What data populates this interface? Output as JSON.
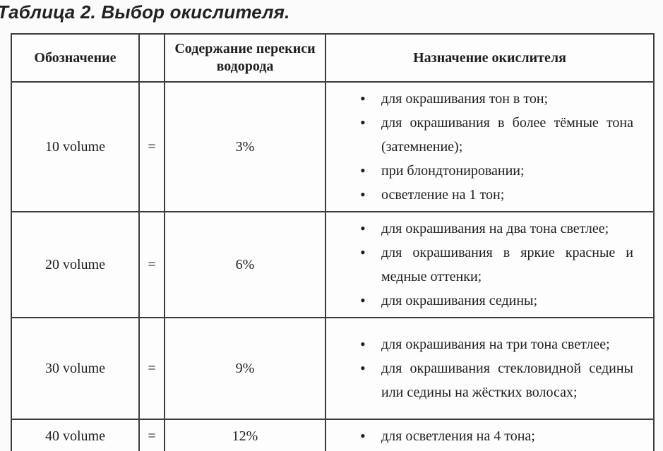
{
  "page": {
    "title": "Таблица 2. Выбор окислителя."
  },
  "table": {
    "headers": {
      "designation": "Обозначение",
      "equals": "",
      "content": "Содержание перекиси водорода",
      "purpose": "Назначение окислителя"
    },
    "rows": [
      {
        "designation": "10 volume",
        "equals": "=",
        "content": "3%",
        "purposes": [
          "для окрашивания тон в тон;",
          "для окрашивания в более тёмные тона (затемнение);",
          "при блондтонировании;",
          "осветление на 1 тон;"
        ]
      },
      {
        "designation": "20 volume",
        "equals": "=",
        "content": "6%",
        "purposes": [
          "для окрашивания на два тона светлее;",
          "для окрашивания в яркие красные и медные оттенки;",
          "для окрашивания седины;"
        ]
      },
      {
        "designation": "30 volume",
        "equals": "=",
        "content": "9%",
        "purposes": [
          "для окрашивания на три тона светлее;",
          "для окрашивания стекловидной седины или седины на жёстких волосах;"
        ]
      },
      {
        "designation": "40 volume",
        "equals": "=",
        "content": "12%",
        "purposes": [
          "для осветления на 4 тона;"
        ]
      }
    ]
  }
}
